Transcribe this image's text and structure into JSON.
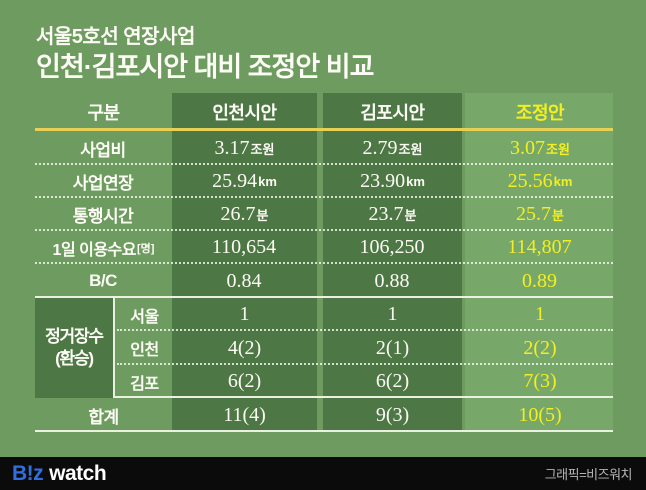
{
  "title": {
    "line1": "서울5호선 연장사업",
    "line2": "인천·김포시안 대비 조정안 비교"
  },
  "table": {
    "headers": {
      "category": "구분",
      "incheon": "인천시안",
      "gimpo": "김포시안",
      "adjusted": "조정안"
    },
    "rows": [
      {
        "label": "사업비",
        "label_sub": "",
        "incheon": {
          "num": "3.17",
          "unit": "조원"
        },
        "gimpo": {
          "num": "2.79",
          "unit": "조원"
        },
        "adjusted": {
          "num": "3.07",
          "unit": "조원"
        }
      },
      {
        "label": "사업연장",
        "label_sub": "",
        "incheon": {
          "num": "25.94",
          "unit": "km"
        },
        "gimpo": {
          "num": "23.90",
          "unit": "km"
        },
        "adjusted": {
          "num": "25.56",
          "unit": "km"
        }
      },
      {
        "label": "통행시간",
        "label_sub": "",
        "incheon": {
          "num": "26.7",
          "unit": "분"
        },
        "gimpo": {
          "num": "23.7",
          "unit": "분"
        },
        "adjusted": {
          "num": "25.7",
          "unit": "분"
        }
      },
      {
        "label": "1일 이용수요",
        "label_sub": "[명]",
        "incheon": {
          "num": "110,654",
          "unit": ""
        },
        "gimpo": {
          "num": "106,250",
          "unit": ""
        },
        "adjusted": {
          "num": "114,807",
          "unit": ""
        }
      },
      {
        "label": "B/C",
        "label_sub": "",
        "incheon": {
          "num": "0.84",
          "unit": ""
        },
        "gimpo": {
          "num": "0.88",
          "unit": ""
        },
        "adjusted": {
          "num": "0.89",
          "unit": ""
        }
      }
    ],
    "station_group": {
      "label_line1": "정거장수",
      "label_line2": "(환승)",
      "rows": [
        {
          "label": "서울",
          "incheon": "1",
          "gimpo": "1",
          "adjusted": "1"
        },
        {
          "label": "인천",
          "incheon": "4(2)",
          "gimpo": "2(1)",
          "adjusted": "2(2)"
        },
        {
          "label": "김포",
          "incheon": "6(2)",
          "gimpo": "6(2)",
          "adjusted": "7(3)"
        }
      ]
    },
    "total": {
      "label": "합계",
      "incheon": "11(4)",
      "gimpo": "9(3)",
      "adjusted": "10(5)"
    }
  },
  "footer": {
    "logo_part1": "B!z",
    "logo_part2": "watch",
    "credit": "그래픽=비즈워치"
  },
  "colors": {
    "background": "#6d9b60",
    "column_dark": "#4e7746",
    "column_adjusted": "#78a76a",
    "accent_yellow": "#f3ef20",
    "header_underline_gold": "#e6d055",
    "divider_white": "#eaf1e1",
    "footer_bg": "#0b0b0b",
    "logo_blue": "#2f6fe2",
    "credit_gray": "#b5b5b5",
    "text_white": "#fdfdf6"
  },
  "chart_data": {
    "type": "table",
    "title": "서울5호선 연장사업 인천·김포시안 대비 조정안 비교",
    "columns": [
      "구분",
      "인천시안",
      "김포시안",
      "조정안"
    ],
    "rows": [
      [
        "사업비",
        "3.17조원",
        "2.79조원",
        "3.07조원"
      ],
      [
        "사업연장",
        "25.94km",
        "23.90km",
        "25.56km"
      ],
      [
        "통행시간",
        "26.7분",
        "23.7분",
        "25.7분"
      ],
      [
        "1일 이용수요[명]",
        "110,654",
        "106,250",
        "114,807"
      ],
      [
        "B/C",
        "0.84",
        "0.88",
        "0.89"
      ],
      [
        "정거장수(환승)-서울",
        "1",
        "1",
        "1"
      ],
      [
        "정거장수(환승)-인천",
        "4(2)",
        "2(1)",
        "2(2)"
      ],
      [
        "정거장수(환승)-김포",
        "6(2)",
        "6(2)",
        "7(3)"
      ],
      [
        "합계",
        "11(4)",
        "9(3)",
        "10(5)"
      ]
    ],
    "layout": {
      "highlight_column": "조정안",
      "highlight_color": "#f3ef20",
      "grid": "dotted-row-dividers"
    }
  }
}
